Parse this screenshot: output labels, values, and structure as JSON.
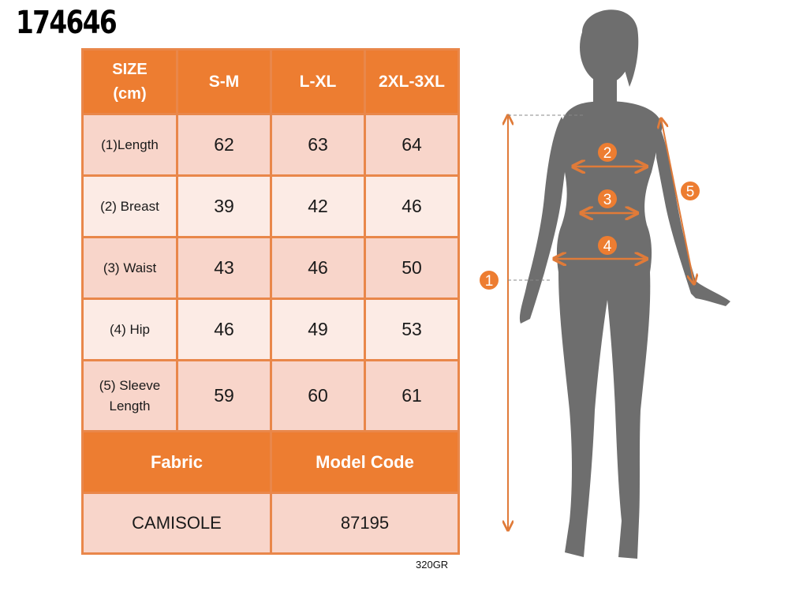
{
  "product_code": "174646",
  "size_table": {
    "header": {
      "size_line1": "SIZE",
      "size_line2": "(cm)",
      "sizes": [
        "S-M",
        "L-XL",
        "2XL-3XL"
      ]
    },
    "rows": [
      {
        "label": "(1)Length",
        "values": [
          "62",
          "63",
          "64"
        ]
      },
      {
        "label": "(2) Breast",
        "values": [
          "39",
          "42",
          "46"
        ]
      },
      {
        "label": "(3) Waist",
        "values": [
          "43",
          "46",
          "50"
        ]
      },
      {
        "label": "(4) Hip",
        "values": [
          "46",
          "49",
          "53"
        ]
      },
      {
        "label_line1": "(5) Sleeve",
        "label_line2": "Length",
        "values": [
          "59",
          "60",
          "61"
        ]
      }
    ]
  },
  "info": {
    "fabric_label": "Fabric",
    "model_code_label": "Model Code",
    "fabric": "CAMISOLE",
    "model_code": "87195"
  },
  "weight": "320GR",
  "measure_markers": [
    "1",
    "2",
    "3",
    "4",
    "5"
  ],
  "colors": {
    "accent": "#ed7d31",
    "row_dark": "#f8d5ca",
    "row_light": "#fcebe5",
    "silhouette": "#6e6e6e"
  }
}
